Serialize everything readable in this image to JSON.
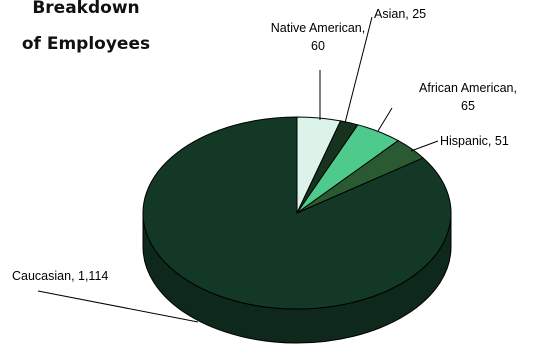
{
  "chart_data": {
    "type": "pie",
    "title_lines": [
      "Breakdown",
      "of Employees"
    ],
    "style": "3d",
    "slices": [
      {
        "label": "Native American",
        "value": 60,
        "value_text": "60",
        "color": "#dcf3ea",
        "label_lines": [
          "Native American,",
          "60"
        ]
      },
      {
        "label": "Asian",
        "value": 25,
        "value_text": "25",
        "color": "#17331f",
        "label_lines": [
          "Asian, 25"
        ]
      },
      {
        "label": "African American",
        "value": 65,
        "value_text": "65",
        "color": "#4ecb8c",
        "label_lines": [
          "African American,",
          "65"
        ]
      },
      {
        "label": "Hispanic",
        "value": 51,
        "value_text": "51",
        "color": "#2a5a32",
        "label_lines": [
          "Hispanic, 51"
        ]
      },
      {
        "label": "Caucasian",
        "value": 1114,
        "value_text": "1,114",
        "color": "#133826",
        "label_lines": [
          "Caucasian, 1,114"
        ]
      }
    ]
  }
}
